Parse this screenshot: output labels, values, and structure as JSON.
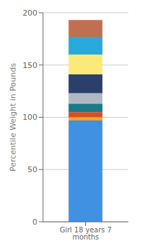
{
  "chart_data": {
    "type": "bar",
    "stacked": true,
    "categories": [
      "Girl 18 years 7 months"
    ],
    "series": [
      {
        "color": "#4191e3",
        "values": [
          97
        ]
      },
      {
        "color": "#f5a623",
        "values": [
          3
        ]
      },
      {
        "color": "#d94f1e",
        "values": [
          5
        ]
      },
      {
        "color": "#1a7a8a",
        "values": [
          8
        ]
      },
      {
        "color": "#b0b8c1",
        "values": [
          10
        ]
      },
      {
        "color": "#2b3f6b",
        "values": [
          18
        ]
      },
      {
        "color": "#fde97a",
        "values": [
          19
        ]
      },
      {
        "color": "#29aadc",
        "values": [
          17
        ]
      },
      {
        "color": "#c07050",
        "values": [
          16
        ]
      }
    ],
    "ylabel": "Percentile Weight in Pounds",
    "ylim": [
      0,
      200
    ],
    "yticks": [
      0,
      50,
      100,
      150,
      200
    ],
    "grid": true
  }
}
